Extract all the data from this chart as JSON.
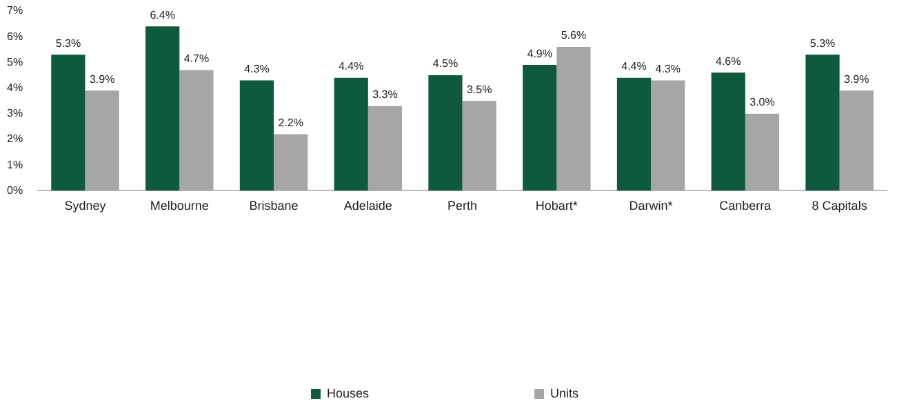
{
  "chart_data": {
    "type": "bar",
    "categories": [
      "Sydney",
      "Melbourne",
      "Brisbane",
      "Adelaide",
      "Perth",
      "Hobart*",
      "Darwin*",
      "Canberra",
      "8 Capitals"
    ],
    "series": [
      {
        "name": "Houses",
        "color": "#0f5a3c",
        "values": [
          5.3,
          6.4,
          4.3,
          4.4,
          4.5,
          4.9,
          4.4,
          4.6,
          5.3
        ],
        "value_labels": [
          "5.3%",
          "6.4%",
          "4.3%",
          "4.4%",
          "4.5%",
          "4.9%",
          "4.4%",
          "4.6%",
          "5.3%"
        ]
      },
      {
        "name": "Units",
        "color": "#a6a6a6",
        "values": [
          3.9,
          4.7,
          2.2,
          3.3,
          3.5,
          5.6,
          4.3,
          3.0,
          3.9
        ],
        "value_labels": [
          "3.9%",
          "4.7%",
          "2.2%",
          "3.3%",
          "3.5%",
          "5.6%",
          "4.3%",
          "3.0%",
          "3.9%"
        ]
      }
    ],
    "ylim": [
      0,
      7
    ],
    "yticks": [
      {
        "value": 0,
        "label": "0%"
      },
      {
        "value": 1,
        "label": "1%"
      },
      {
        "value": 2,
        "label": "2%"
      },
      {
        "value": 3,
        "label": "3%"
      },
      {
        "value": 4,
        "label": "4%"
      },
      {
        "value": 5,
        "label": "5%"
      },
      {
        "value": 6,
        "label": "6%"
      },
      {
        "value": 7,
        "label": "7%"
      }
    ],
    "grid": false,
    "legend": "bottom"
  }
}
